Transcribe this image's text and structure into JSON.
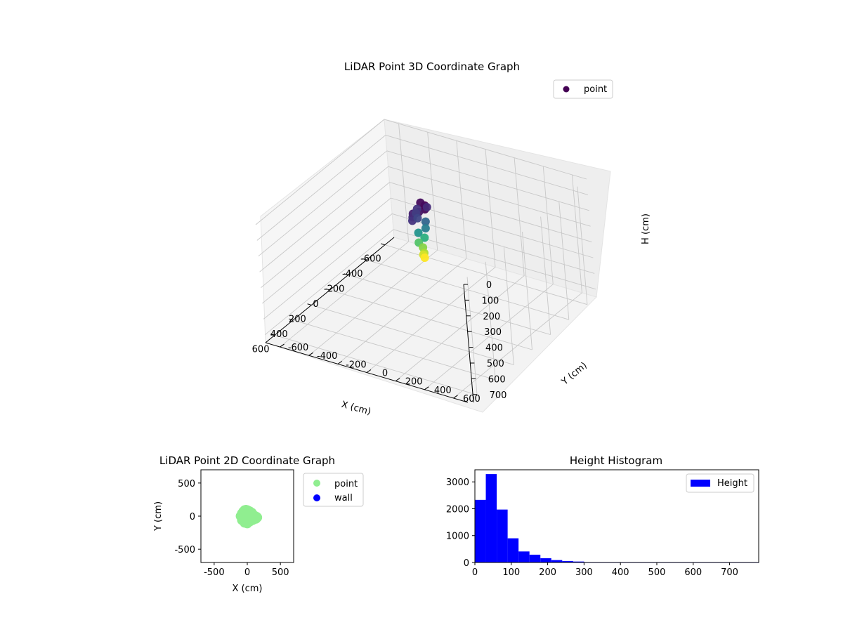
{
  "chart_data": [
    {
      "type": "scatter",
      "projection": "3d",
      "title": "LiDAR Point 3D Coordinate Graph",
      "xlabel": "X (cm)",
      "ylabel": "Y (cm)",
      "zlabel": "H (cm)",
      "xlim": [
        -700,
        700
      ],
      "ylim": [
        -700,
        700
      ],
      "zlim": [
        0,
        750
      ],
      "zaxis_inverted": true,
      "x_ticks": [
        -600,
        -400,
        -200,
        0,
        200,
        400,
        600
      ],
      "y_ticks": [
        -600,
        -400,
        -200,
        0,
        200,
        400,
        600
      ],
      "z_ticks": [
        0,
        100,
        200,
        300,
        400,
        500,
        600,
        700
      ],
      "grid": true,
      "legend": {
        "location": "upper right",
        "entries": [
          {
            "label": "point",
            "color": "#440154"
          }
        ]
      },
      "colormap": "viridis",
      "series": [
        {
          "name": "point",
          "description": "dense point cluster near origin, colored by height",
          "x": [
            -20,
            10,
            40,
            60,
            80,
            100,
            120,
            -40,
            -10,
            20,
            50,
            0,
            20,
            40,
            10,
            30,
            20,
            40,
            30,
            25
          ],
          "y": [
            -20,
            30,
            50,
            20,
            -10,
            0,
            10,
            10,
            -40,
            -30,
            0,
            20,
            30,
            -10,
            10,
            -20,
            0,
            20,
            5,
            10
          ],
          "z": [
            20,
            10,
            15,
            30,
            40,
            50,
            60,
            50,
            60,
            70,
            80,
            120,
            150,
            180,
            220,
            250,
            280,
            300,
            320,
            340
          ]
        }
      ]
    },
    {
      "type": "scatter",
      "title": "LiDAR Point 2D Coordinate Graph",
      "xlabel": "X (cm)",
      "ylabel": "Y (cm)",
      "xlim": [
        -700,
        700
      ],
      "ylim": [
        -700,
        700
      ],
      "x_ticks": [
        -500,
        0,
        500
      ],
      "y_ticks": [
        -500,
        0,
        500
      ],
      "legend": {
        "location": "outside right",
        "entries": [
          {
            "label": "point",
            "color": "#90ee90"
          },
          {
            "label": "wall",
            "color": "#0000ff"
          }
        ]
      },
      "series": [
        {
          "name": "point",
          "color": "#90ee90",
          "x": [
            -100,
            -80,
            -60,
            -40,
            -20,
            0,
            20,
            40,
            60,
            80,
            100,
            120,
            140,
            150,
            130,
            80,
            40,
            0,
            -40,
            -80,
            -60,
            0,
            60,
            20,
            -20,
            100,
            40,
            -40,
            10,
            70
          ],
          "y": [
            0,
            40,
            70,
            90,
            95,
            90,
            80,
            70,
            40,
            20,
            10,
            0,
            -10,
            -20,
            -40,
            -60,
            -80,
            -110,
            -100,
            -60,
            -20,
            40,
            -30,
            20,
            -40,
            -20,
            10,
            50,
            -70,
            50
          ]
        },
        {
          "name": "wall",
          "color": "#0000ff",
          "x": [],
          "y": []
        }
      ]
    },
    {
      "type": "bar",
      "subtype": "histogram",
      "title": "Height Histogram",
      "xlim": [
        0,
        780
      ],
      "ylim": [
        0,
        3450
      ],
      "x_ticks": [
        0,
        100,
        200,
        300,
        400,
        500,
        600,
        700
      ],
      "y_ticks": [
        0,
        1000,
        2000,
        3000
      ],
      "legend": {
        "location": "upper right",
        "entries": [
          {
            "label": "Height",
            "color": "#0000ff"
          }
        ]
      },
      "bar_color": "#0000ff",
      "series": [
        {
          "name": "Height",
          "bin_edges": [
            0,
            30,
            60,
            90,
            120,
            150,
            180,
            210,
            240,
            270,
            300,
            780
          ],
          "counts": [
            2330,
            3290,
            1970,
            900,
            410,
            290,
            160,
            90,
            55,
            35,
            5
          ]
        }
      ]
    }
  ]
}
